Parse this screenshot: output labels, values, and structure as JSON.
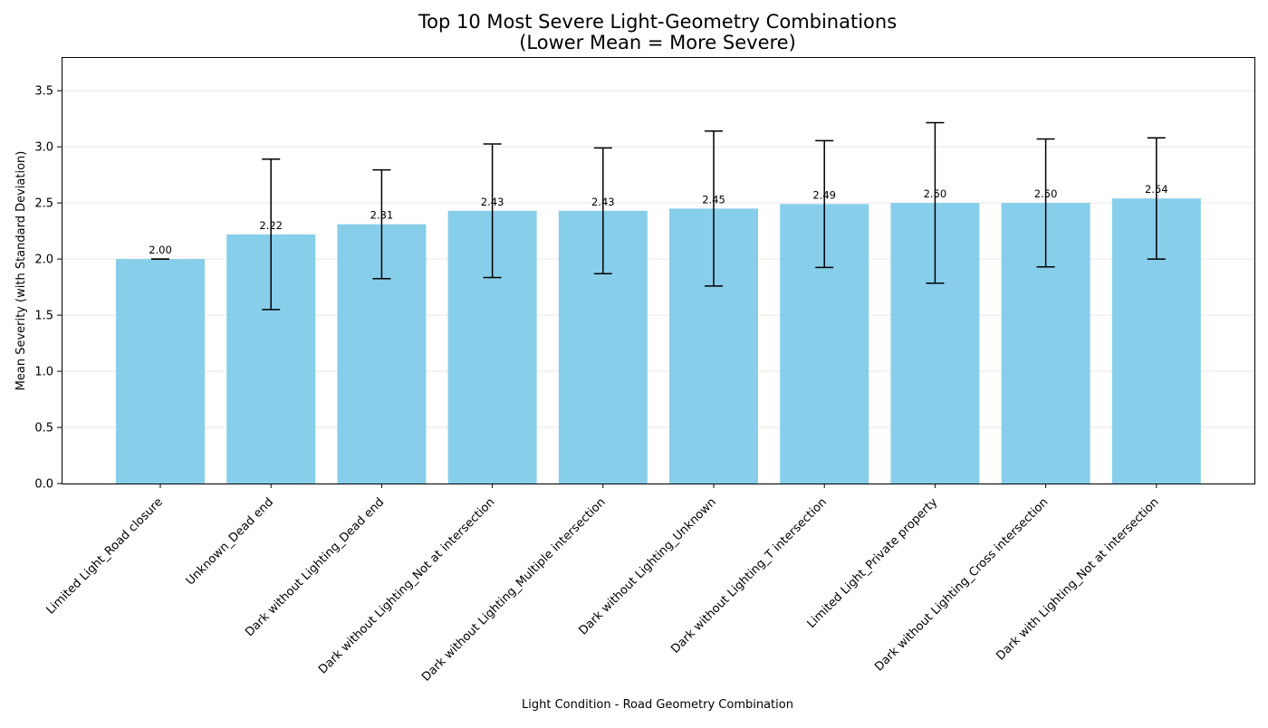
{
  "chart_data": {
    "type": "bar",
    "title_line1": "Top 10 Most Severe Light-Geometry Combinations",
    "title_line2": "(Lower Mean = More Severe)",
    "xlabel": "Light Condition - Road Geometry Combination",
    "ylabel": "Mean Severity (with Standard Deviation)",
    "ylim": [
      0,
      3.8
    ],
    "yticks": [
      0.0,
      0.5,
      1.0,
      1.5,
      2.0,
      2.5,
      3.0,
      3.5
    ],
    "grid": "y-axis, light gray",
    "bar_color": "#87CEEB",
    "categories": [
      "Limited Light_Road closure",
      "Unknown_Dead end",
      "Dark without Lighting_Dead end",
      "Dark without Lighting_Not at intersection",
      "Dark without Lighting_Multiple intersection",
      "Dark without Lighting_Unknown",
      "Dark without Lighting_T intersection",
      "Limited Light_Private property",
      "Dark without Lighting_Cross intersection",
      "Dark with Lighting_Not at intersection"
    ],
    "values": [
      2.0,
      2.22,
      2.31,
      2.43,
      2.43,
      2.45,
      2.49,
      2.5,
      2.5,
      2.54
    ],
    "value_labels": [
      "2.00",
      "2.22",
      "2.31",
      "2.43",
      "2.43",
      "2.45",
      "2.49",
      "2.50",
      "2.50",
      "2.54"
    ],
    "std": [
      0.0,
      0.67,
      0.485,
      0.595,
      0.56,
      0.69,
      0.565,
      0.715,
      0.57,
      0.54
    ]
  }
}
